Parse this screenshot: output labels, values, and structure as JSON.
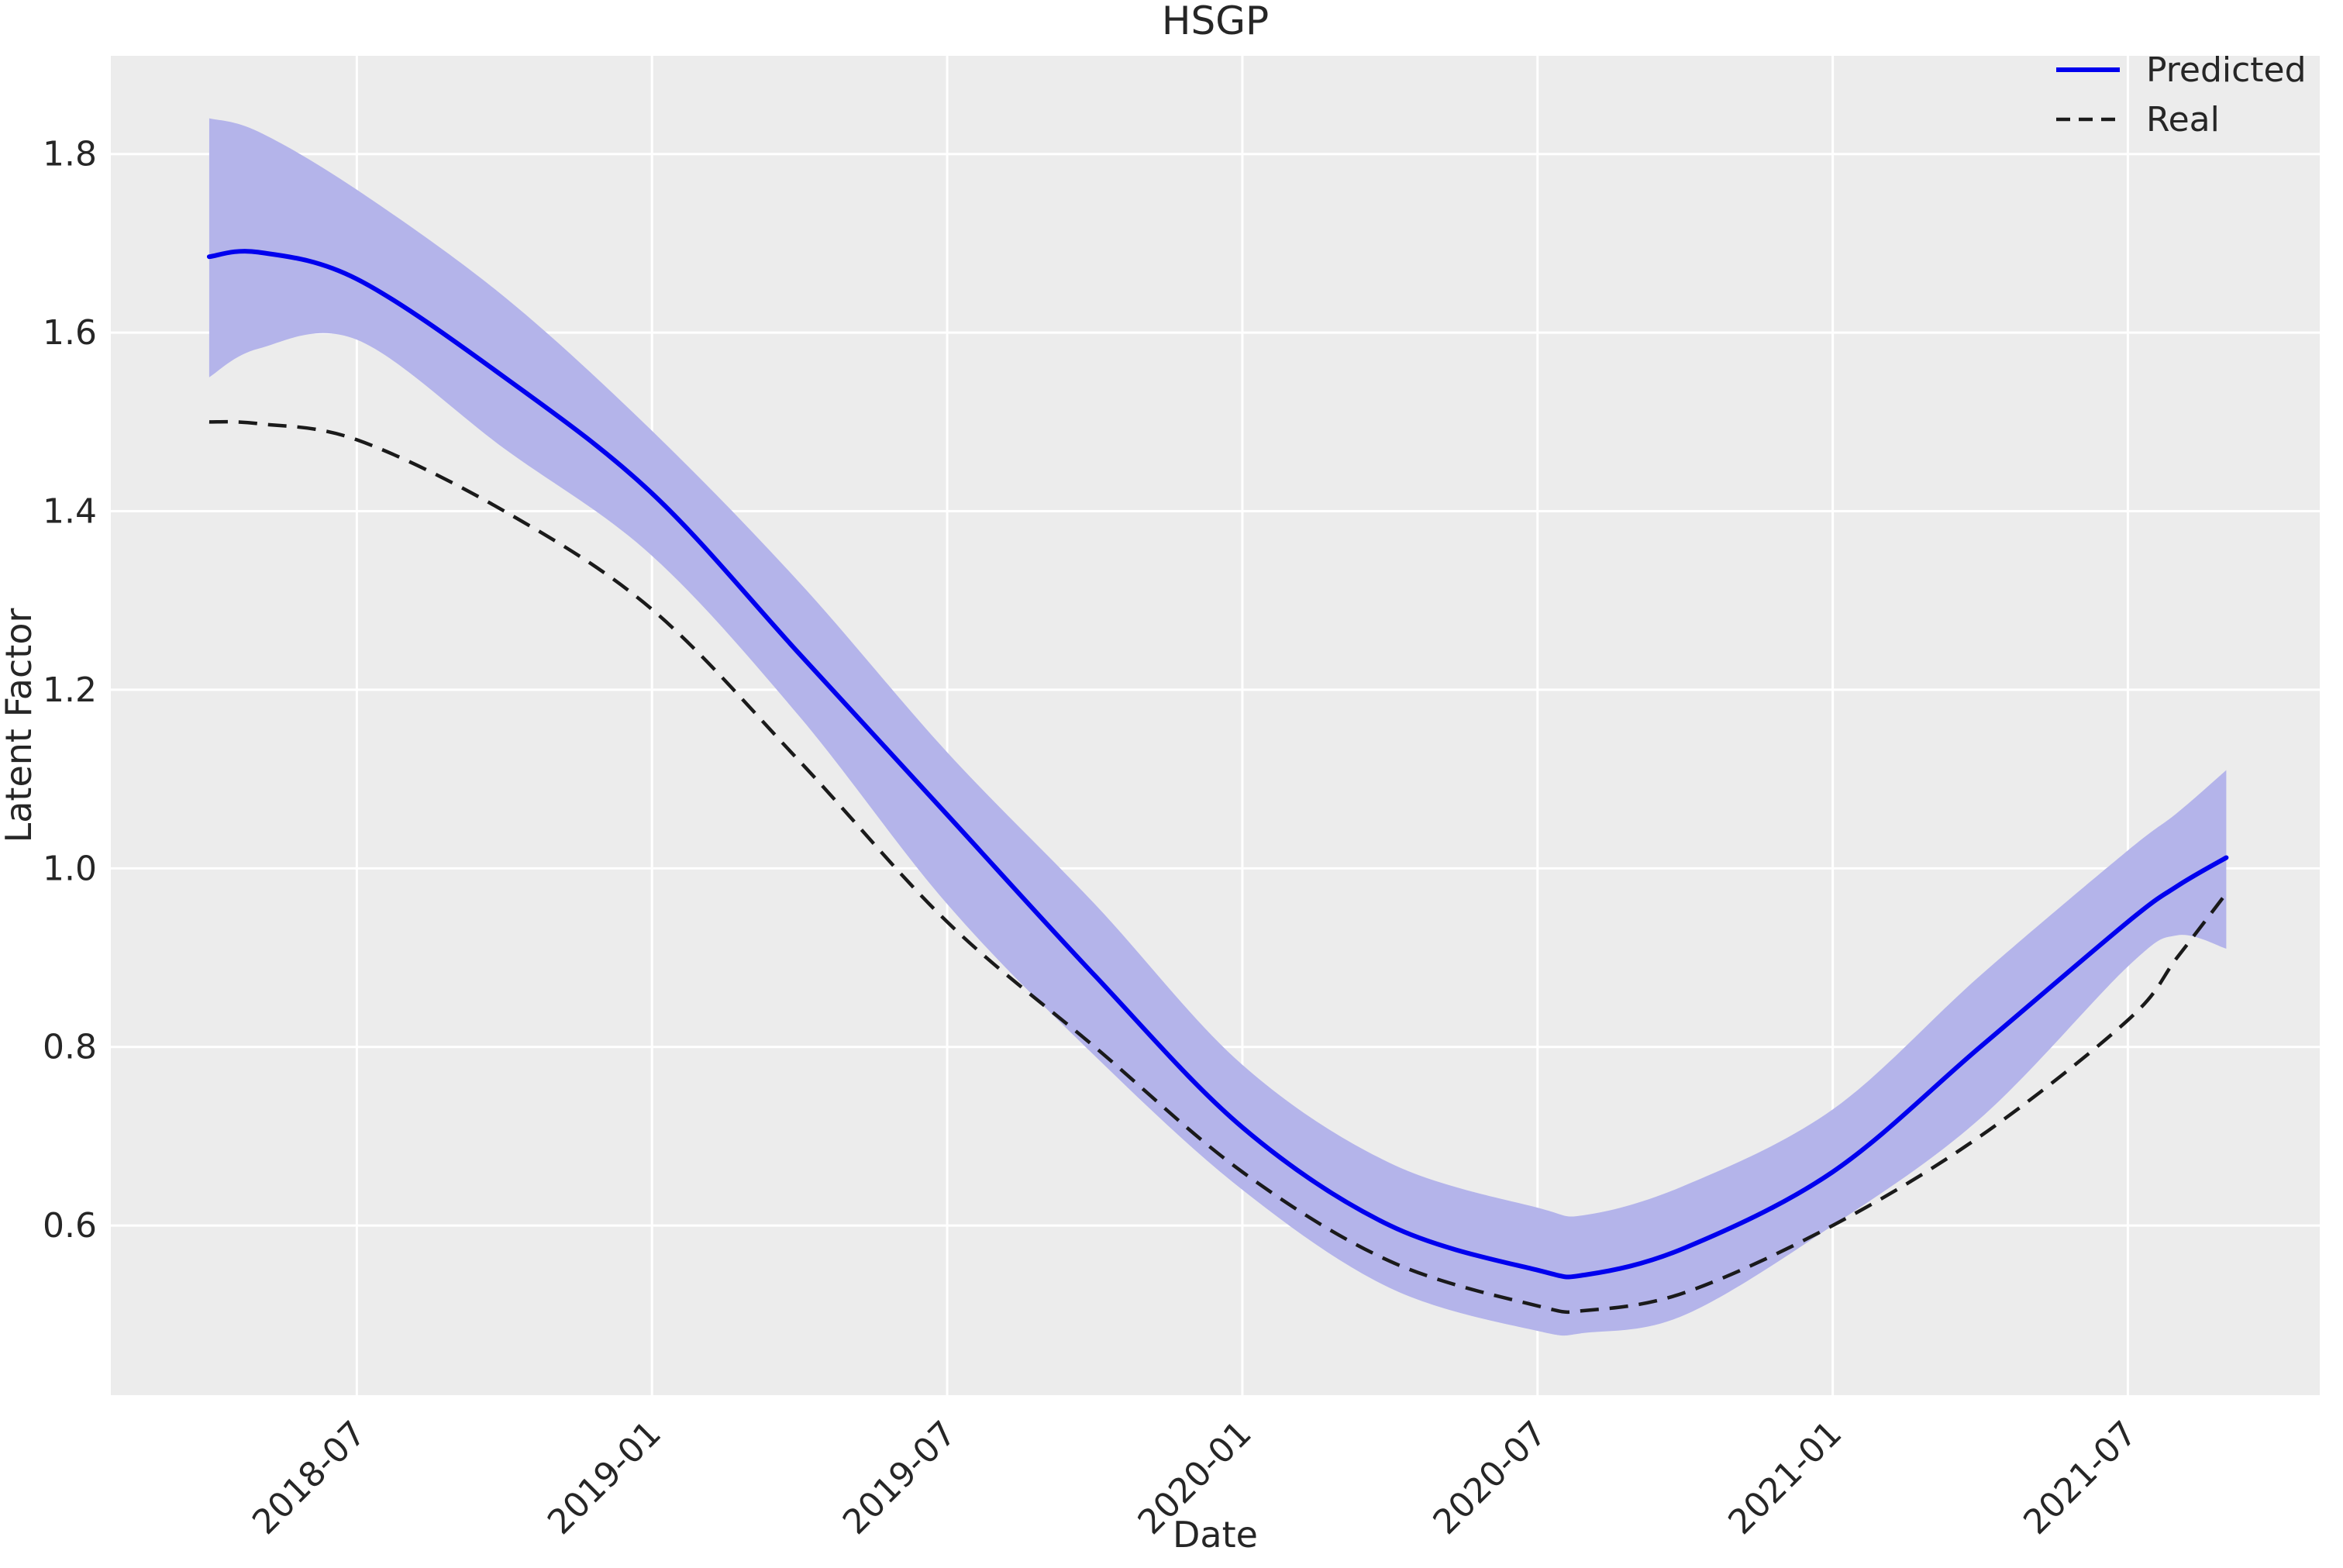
{
  "title": "HSGP",
  "colors": {
    "figure_bg": "#ffffff",
    "axes_bg": "#ececec",
    "grid": "#ffffff",
    "predicted": "#0000ee",
    "band": "#b4b4ea",
    "real": "#1a1a1a",
    "text": "#262626"
  },
  "chart_data": {
    "type": "line",
    "title": "HSGP",
    "xlabel": "Date",
    "ylabel": "Latent Factor",
    "grid": true,
    "legend_position": "upper right",
    "x_ticks": [
      "2018-07",
      "2019-01",
      "2019-07",
      "2020-01",
      "2020-07",
      "2021-01",
      "2021-07"
    ],
    "y_ticks": [
      1.8,
      1.6,
      1.4,
      1.2,
      1.0,
      0.8,
      0.6
    ],
    "ylim": [
      0.41,
      1.91
    ],
    "x_epoch": "months since 2018-01",
    "xlim_t": [
      1.0,
      45.9
    ],
    "x": [
      "2018-04",
      "2018-05",
      "2018-07",
      "2018-10",
      "2019-01",
      "2019-04",
      "2019-07",
      "2019-10",
      "2020-01",
      "2020-04",
      "2020-07",
      "2020-08",
      "2020-10",
      "2021-01",
      "2021-04",
      "2021-07",
      "2021-08",
      "2021-09"
    ],
    "series": [
      {
        "name": "Predicted",
        "style": "solid",
        "color": "#0000ee",
        "values": [
          1.685,
          1.69,
          1.66,
          1.55,
          1.42,
          1.24,
          1.06,
          0.88,
          0.71,
          0.6,
          0.55,
          0.545,
          0.575,
          0.66,
          0.8,
          0.94,
          0.98,
          1.012
        ],
        "band_high": [
          1.84,
          1.825,
          1.76,
          1.64,
          1.49,
          1.32,
          1.13,
          0.96,
          0.78,
          0.67,
          0.62,
          0.612,
          0.645,
          0.73,
          0.88,
          1.02,
          1.062,
          1.11
        ],
        "band_low": [
          1.55,
          1.582,
          1.592,
          1.47,
          1.35,
          1.17,
          0.96,
          0.79,
          0.64,
          0.53,
          0.482,
          0.48,
          0.5,
          0.6,
          0.72,
          0.89,
          0.925,
          0.91
        ]
      },
      {
        "name": "Real",
        "style": "dashed",
        "color": "#1a1a1a",
        "values": [
          1.5,
          1.498,
          1.48,
          1.4,
          1.29,
          1.12,
          0.94,
          0.8,
          0.66,
          0.56,
          0.51,
          0.505,
          0.525,
          0.6,
          0.7,
          0.83,
          0.9,
          0.972
        ]
      }
    ]
  }
}
